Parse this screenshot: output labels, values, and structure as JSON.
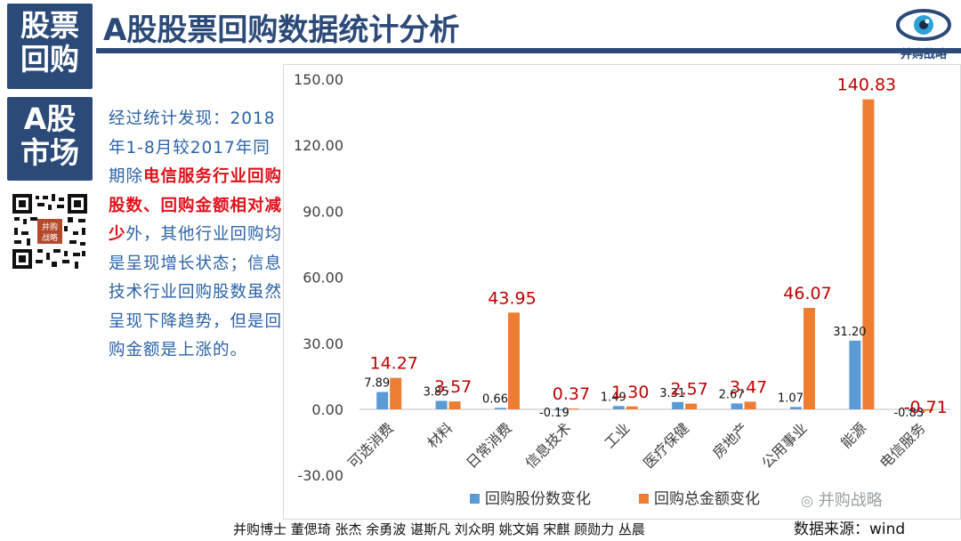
{
  "badges": {
    "top": "股票\n回购",
    "second": "A股\n市场"
  },
  "title": "A股股票回购数据统计分析",
  "logo": {
    "icon": "eye-icon",
    "text": "并购战略"
  },
  "qr": {
    "icon": "qr-code-icon",
    "stamp": "并购战略"
  },
  "description": {
    "intro": "经过统计发现：2018年1-8月较2017年同期除",
    "highlight": "电信服务行业回购股数、回购金额相对减少",
    "rest": "外，其他行业回购均是呈现增长状态；信息技术行业回购股数虽然呈现下降趋势，但是回购金额是上涨的。"
  },
  "colors": {
    "navy": "#2b4a78",
    "shares": "#5b9bd5",
    "amount": "#ed7d31",
    "amount_label": "#c00000",
    "text_blue": "#2b62a8",
    "highlight": "#e0111b"
  },
  "chart_data": {
    "type": "bar",
    "categories": [
      "可选消费",
      "材料",
      "日常消费",
      "信息技术",
      "工业",
      "医疗保健",
      "房地产",
      "公用事业",
      "能源",
      "电信服务"
    ],
    "series": [
      {
        "name": "回购股份数变化",
        "values": [
          7.89,
          3.85,
          0.66,
          -0.19,
          1.49,
          3.31,
          2.67,
          1.07,
          31.2,
          -0.83
        ]
      },
      {
        "name": "回购总金额变化",
        "values": [
          14.27,
          3.57,
          43.95,
          0.37,
          1.3,
          2.57,
          3.47,
          46.07,
          140.83,
          -0.71
        ]
      }
    ],
    "value_labels": [
      [
        "7.89",
        "3.85",
        "0.66",
        "-0.19",
        "1.49",
        "3.31",
        "2.67",
        "1.07",
        "31.20",
        "-0.83"
      ],
      [
        "14.27",
        "3.57",
        "43.95",
        "0.37",
        "1.30",
        "2.57",
        "3.47",
        "46.07",
        "140.83",
        "-0.71"
      ]
    ],
    "yticks": [
      "150.00",
      "120.00",
      "90.00",
      "60.00",
      "30.00",
      "0.00",
      "-30.00"
    ],
    "ylim": [
      -30,
      150
    ],
    "legend_position": "bottom",
    "grid": false
  },
  "watermark": "并购战略",
  "authors": "并购博士 董偲琦 张杰 余勇波 谌斯凡 刘众明 姚文娟 宋麒 顾勋力 丛晨",
  "source": "数据来源：wind"
}
